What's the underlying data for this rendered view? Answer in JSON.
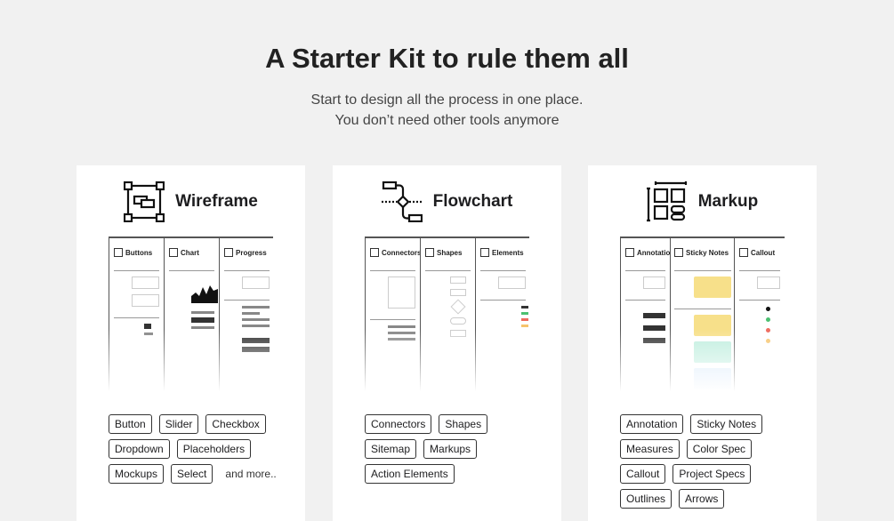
{
  "hero": {
    "title": "A Starter Kit to rule them all",
    "subtitle_line1": "Start to design all the process in one place.",
    "subtitle_line2": "You don’t need other tools anymore"
  },
  "cards": [
    {
      "title": "Wireframe",
      "icon": "wireframe-icon",
      "panels": [
        "Buttons",
        "Chart",
        "Progress"
      ],
      "tags": [
        "Button",
        "Slider",
        "Checkbox",
        "Dropdown",
        "Placeholders",
        "Mockups",
        "Select"
      ],
      "more": "and more.."
    },
    {
      "title": "Flowchart",
      "icon": "flowchart-icon",
      "panels": [
        "Connectors",
        "Shapes",
        "Elements"
      ],
      "tags": [
        "Connectors",
        "Shapes",
        "Sitemap",
        "Markups",
        "Action Elements"
      ]
    },
    {
      "title": "Markup",
      "icon": "markup-icon",
      "panels": [
        "Annotation",
        "Sticky Notes",
        "Callout"
      ],
      "tags": [
        "Annotation",
        "Sticky Notes",
        "Measures",
        "Color Spec",
        "Callout",
        "Project Specs",
        "Outlines",
        "Arrows"
      ]
    }
  ],
  "colors": {
    "sticky_yellow": "#f7e08a",
    "sticky_green": "#bfeede",
    "sticky_blue": "#d6e8fa",
    "positive": "#4cc071",
    "negative": "#ee6b5e",
    "warning": "#f6c46c"
  }
}
